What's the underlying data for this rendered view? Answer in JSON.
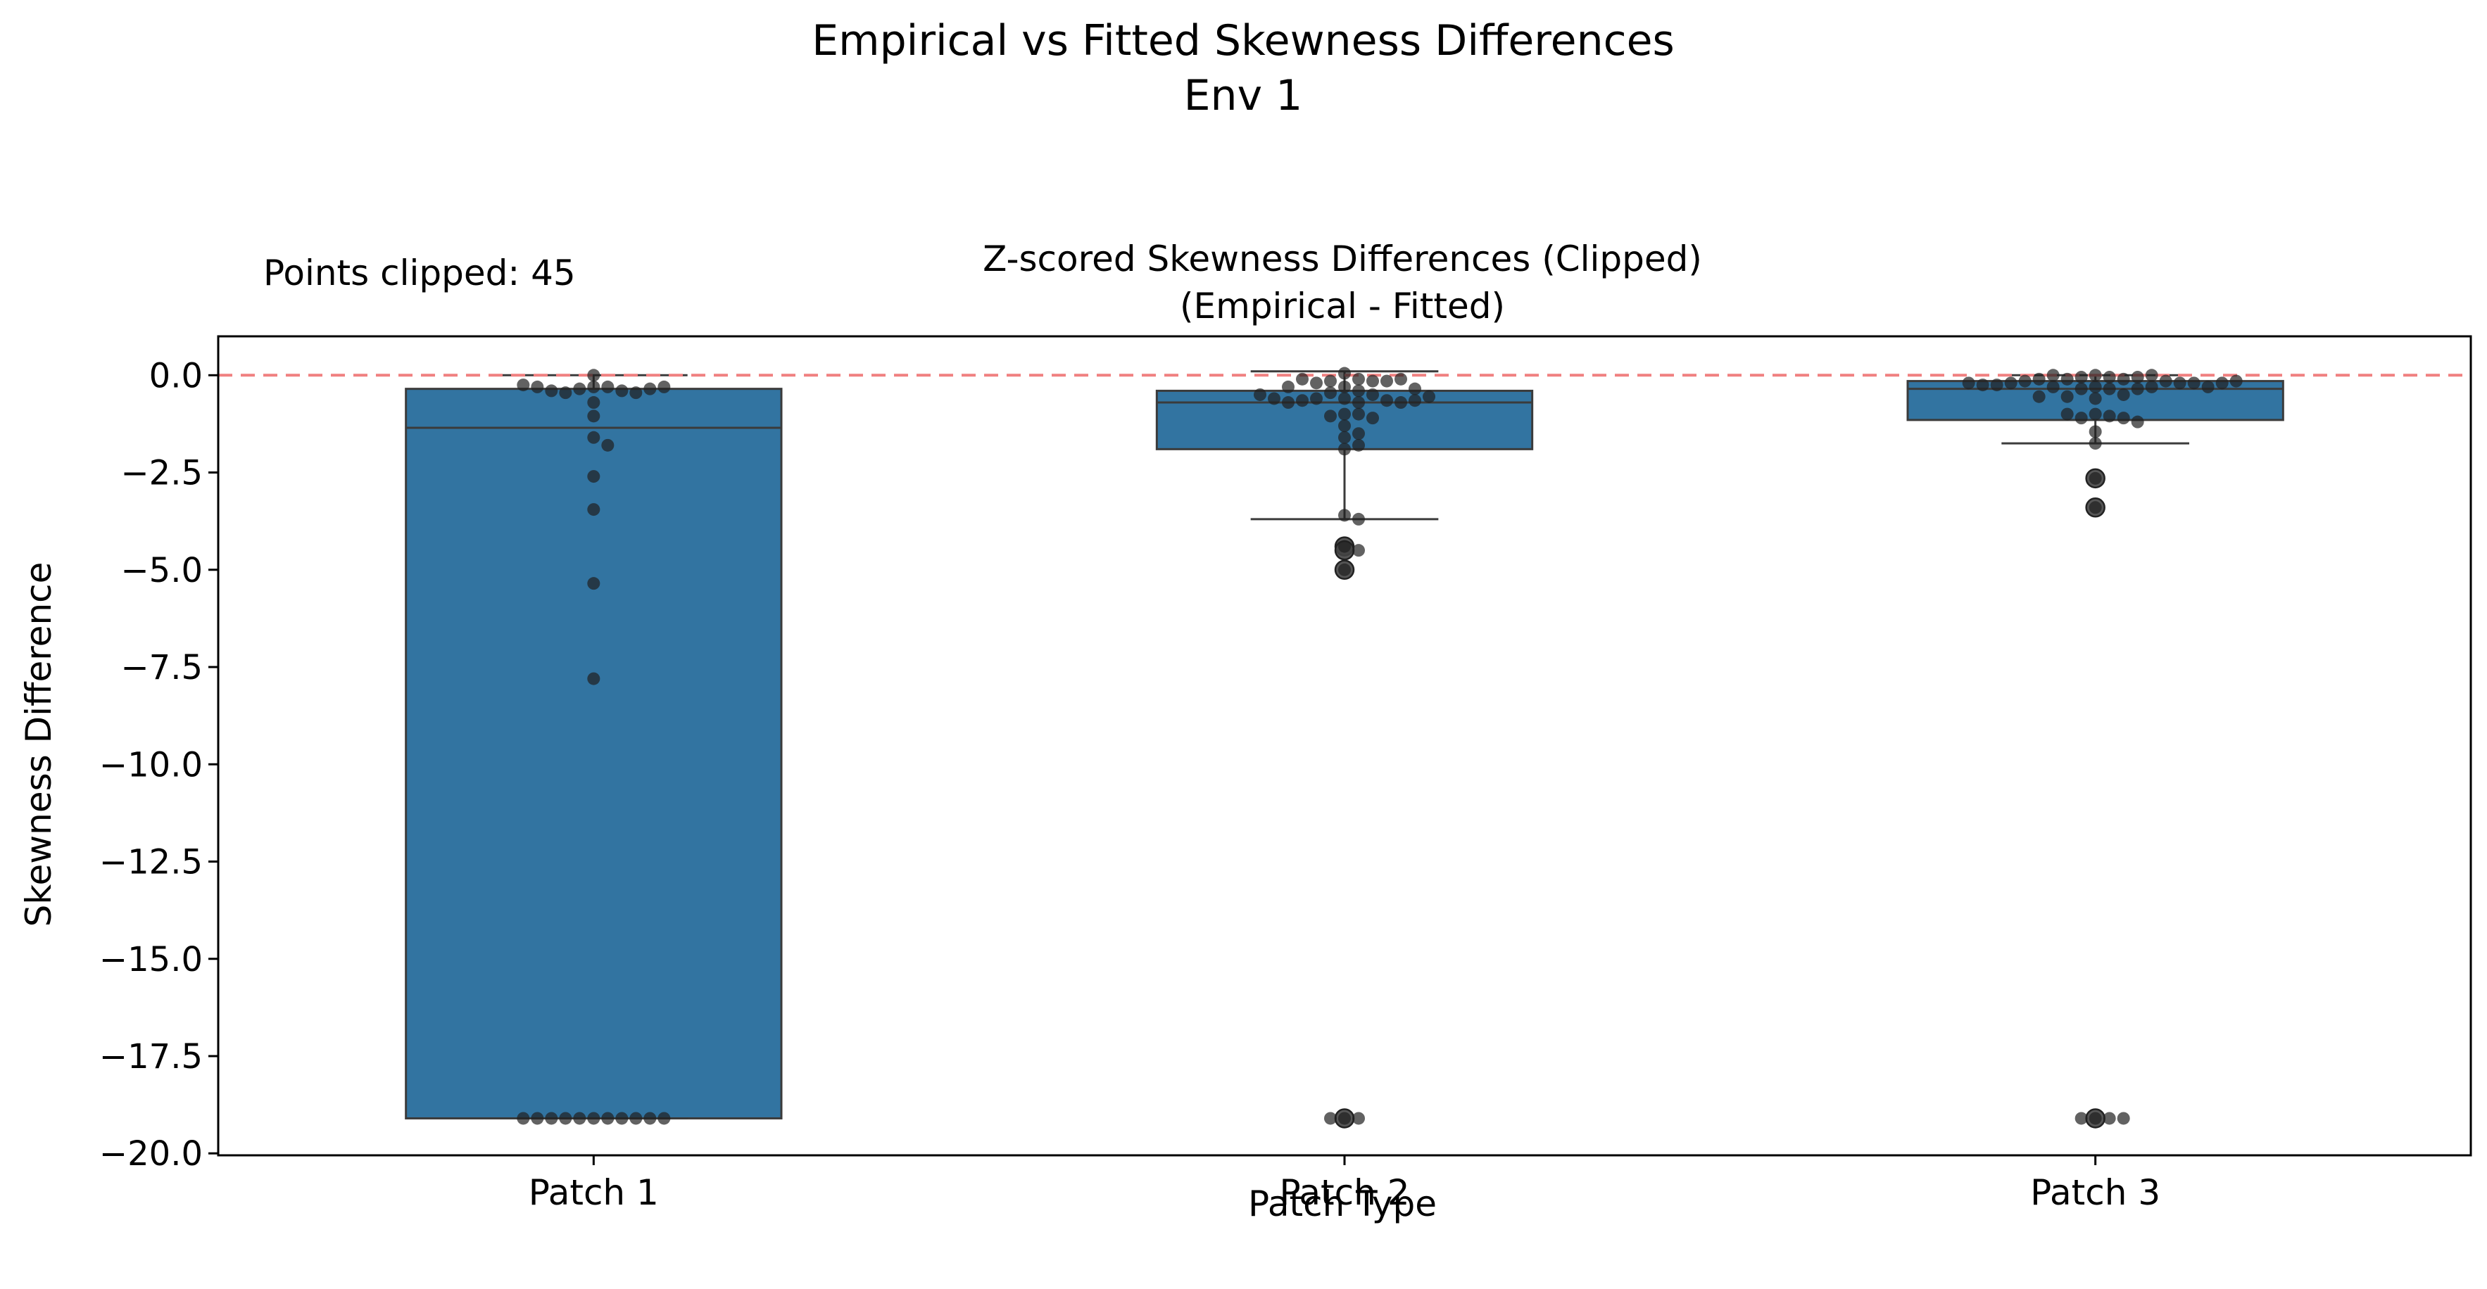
{
  "figure": {
    "suptitle_line1": "Empirical vs Fitted Skewness Differences",
    "suptitle_line2": "Env 1",
    "annotation": "Points clipped: 45"
  },
  "chart_data": {
    "type": "box",
    "title_line1": "Z-scored Skewness Differences (Clipped)",
    "title_line2": "(Empirical - Fitted)",
    "xlabel": "Patch Type",
    "ylabel": "Skewness Difference",
    "ylim": [
      -20.05,
      1.0
    ],
    "yticks": [
      0.0,
      -2.5,
      -5.0,
      -7.5,
      -10.0,
      -12.5,
      -15.0,
      -17.5,
      -20.0
    ],
    "ytick_labels": [
      "0.0",
      "−2.5",
      "−5.0",
      "−7.5",
      "−10.0",
      "−12.5",
      "−15.0",
      "−17.5",
      "−20.0"
    ],
    "categories": [
      "Patch 1",
      "Patch 2",
      "Patch 3"
    ],
    "reference_line": {
      "y": 0.0,
      "style": "dashed",
      "color": "#f08080"
    },
    "colors": {
      "box": "#3274a1",
      "box_edge": "#3b3b3b",
      "point": "#1f1f1f"
    },
    "boxes": [
      {
        "category": "Patch 1",
        "q1": -19.1,
        "median": -1.35,
        "q3": -0.35,
        "whisker_low": -19.1,
        "whisker_high": 0.0,
        "outliers": []
      },
      {
        "category": "Patch 2",
        "q1": -1.9,
        "median": -0.7,
        "q3": -0.4,
        "whisker_low": -3.7,
        "whisker_high": 0.1,
        "outliers": [
          -4.4,
          -4.5,
          -5.0,
          -19.1
        ]
      },
      {
        "category": "Patch 3",
        "q1": -1.15,
        "median": -0.35,
        "q3": -0.15,
        "whisker_low": -1.75,
        "whisker_high": 0.0,
        "outliers": [
          -2.65,
          -3.4,
          -19.1
        ]
      }
    ],
    "points": [
      {
        "category": "Patch 1",
        "values": [
          0.0,
          -0.3,
          -0.3,
          -0.35,
          -0.4,
          -0.45,
          -0.45,
          -0.4,
          -0.35,
          -0.3,
          -0.3,
          -0.25,
          -0.7,
          -1.05,
          -1.6,
          -1.8,
          -2.6,
          -3.45,
          -5.35,
          -7.8,
          -19.1,
          -19.1,
          -19.1,
          -19.1,
          -19.1,
          -19.1,
          -19.1,
          -19.1,
          -19.1,
          -19.1,
          -19.1
        ]
      },
      {
        "category": "Patch 2",
        "values": [
          0.05,
          -0.1,
          -0.15,
          -0.15,
          -0.2,
          -0.15,
          -0.1,
          -0.1,
          -0.3,
          -0.3,
          -0.35,
          -0.4,
          -0.45,
          -0.5,
          -0.6,
          -0.6,
          -0.65,
          -0.65,
          -0.7,
          -0.7,
          -0.7,
          -0.65,
          -0.6,
          -0.55,
          -0.5,
          -1.0,
          -1.0,
          -1.05,
          -1.1,
          -1.3,
          -1.5,
          -1.6,
          -1.8,
          -1.9,
          -3.6,
          -3.7,
          -4.4,
          -4.5,
          -5.0,
          -19.1,
          -19.1,
          -19.1
        ]
      },
      {
        "category": "Patch 3",
        "values": [
          0.0,
          -0.05,
          -0.05,
          -0.1,
          -0.1,
          -0.05,
          0.0,
          0.0,
          -0.1,
          -0.15,
          -0.15,
          -0.2,
          -0.2,
          -0.2,
          -0.25,
          -0.3,
          -0.3,
          -0.35,
          -0.35,
          -0.35,
          -0.3,
          -0.3,
          -0.25,
          -0.2,
          -0.2,
          -0.15,
          -0.5,
          -0.55,
          -0.6,
          -0.55,
          -1.0,
          -1.05,
          -1.1,
          -1.1,
          -1.0,
          -1.2,
          -1.45,
          -1.75,
          -2.65,
          -3.4,
          -19.1,
          -19.1,
          -19.1,
          -19.1
        ]
      }
    ]
  }
}
